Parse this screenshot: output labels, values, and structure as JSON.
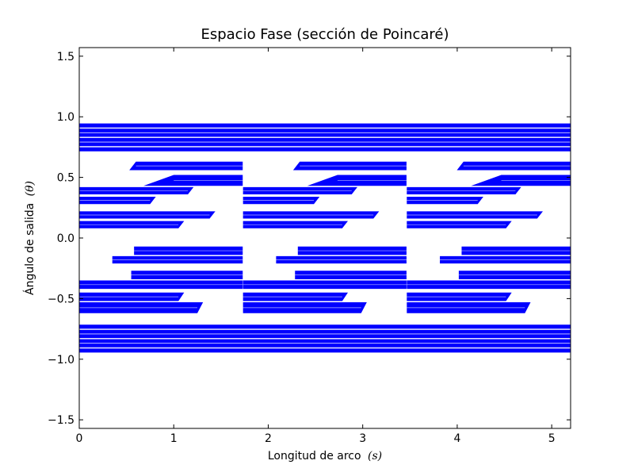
{
  "chart_data": {
    "type": "scatter",
    "title": "Espacio Fase (sección de Poincaré)",
    "xlabel": "Longitud de arco",
    "xlabel_symbol": "(s)",
    "ylabel": "Ángulo de salida",
    "ylabel_symbol": "(θ)",
    "xlim": [
      0,
      5.2
    ],
    "ylim": [
      -1.5708,
      1.5708
    ],
    "xticks": [
      0,
      1,
      2,
      3,
      4,
      5
    ],
    "xtick_labels": [
      "0",
      "1",
      "2",
      "3",
      "4",
      "5"
    ],
    "yticks": [
      -1.5,
      -1.0,
      -0.5,
      0.0,
      0.5,
      1.0,
      1.5
    ],
    "ytick_labels": [
      "−1.5",
      "−1.0",
      "−0.5",
      "0.0",
      "0.5",
      "1.0",
      "1.5"
    ],
    "grid": false,
    "legend": "none",
    "marker_color": "#0000ff",
    "periodic_segment_length": 1.7333,
    "full_width_bands": [
      {
        "y0": 0.715,
        "y1": 0.945
      },
      {
        "y0": -0.945,
        "y1": -0.715
      }
    ],
    "segment_bands": [
      {
        "y_bottom": 0.56,
        "y_top": 0.63,
        "x_start_top": 0.6,
        "x_start_bottom": 0.53,
        "x_end": 1.73
      },
      {
        "y_bottom": 0.43,
        "y_top": 0.52,
        "x_start_top": 1.0,
        "x_start_bottom": 0.68,
        "x_end": 1.73
      },
      {
        "y_bottom": 0.36,
        "y_top": 0.42,
        "x_start": 0.0,
        "x_end": 1.15
      },
      {
        "y_bottom": 0.28,
        "y_top": 0.34,
        "x_start": 0.0,
        "x_end": 0.75
      },
      {
        "y_bottom": 0.16,
        "y_top": 0.22,
        "x_start": 0.0,
        "x_end": 1.38
      },
      {
        "y_bottom": 0.08,
        "y_top": 0.14,
        "x_start": 0.0,
        "x_end": 1.05
      },
      {
        "y_bottom": -0.14,
        "y_top": -0.07,
        "x_start": 0.58,
        "x_end": 1.73
      },
      {
        "y_bottom": -0.21,
        "y_top": -0.15,
        "x_start": 0.35,
        "x_end": 1.73
      },
      {
        "y_bottom": -0.34,
        "y_top": -0.27,
        "x_start": 0.55,
        "x_end": 1.73
      },
      {
        "y_bottom": -0.42,
        "y_top": -0.35,
        "x_start": 0.0,
        "x_end": 1.73
      },
      {
        "y_bottom": -0.52,
        "y_top": -0.45,
        "x_start": 0.0,
        "x_end": 1.05
      },
      {
        "y_bottom": -0.62,
        "y_top": -0.53,
        "x_start": 0.0,
        "x_end": 1.25
      }
    ],
    "segment_offsets": [
      0,
      1.7333,
      3.4666
    ]
  }
}
